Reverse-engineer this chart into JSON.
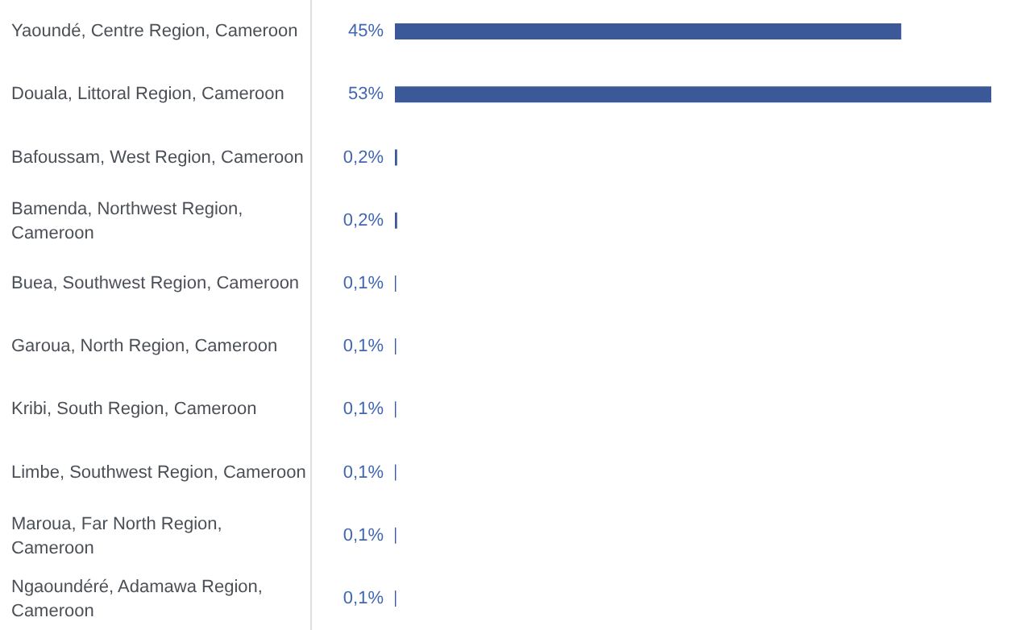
{
  "chart_data": {
    "type": "bar",
    "orientation": "horizontal",
    "categories": [
      "Yaoundé, Centre Region, Cameroon",
      "Douala, Littoral Region, Cameroon",
      "Bafoussam, West Region, Cameroon",
      "Bamenda, Northwest Region, Cameroon",
      "Buea, Southwest Region, Cameroon",
      "Garoua, North Region, Cameroon",
      "Kribi, South Region, Cameroon",
      "Limbe, Southwest Region, Cameroon",
      "Maroua, Far North Region, Cameroon",
      "Ngaoundéré, Adamawa Region, Cameroon"
    ],
    "values": [
      45,
      53,
      0.2,
      0.2,
      0.1,
      0.1,
      0.1,
      0.1,
      0.1,
      0.1
    ],
    "value_labels": [
      "45%",
      "53%",
      "0,2%",
      "0,2%",
      "0,1%",
      "0,1%",
      "0,1%",
      "0,1%",
      "0,1%",
      "0,1%"
    ],
    "color": "#3b5998"
  }
}
